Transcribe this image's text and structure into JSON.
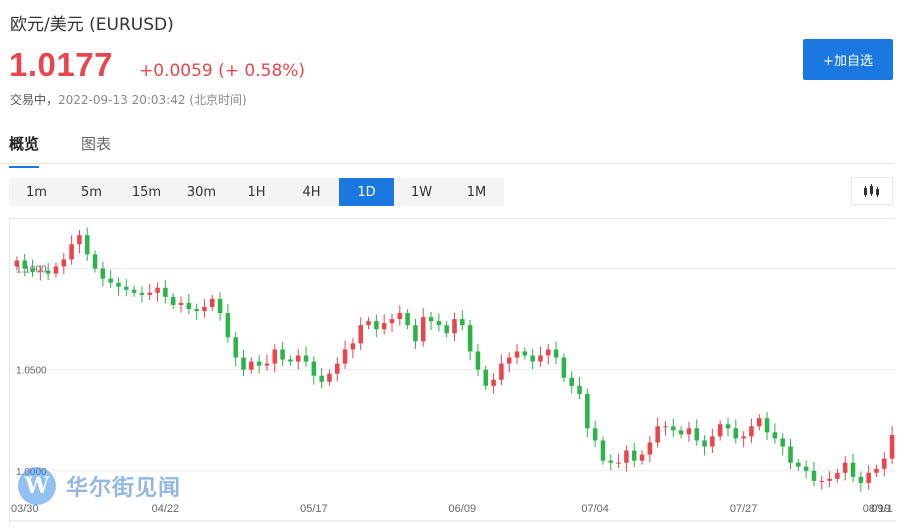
{
  "header": {
    "title": "欧元/美元  (EURUSD)",
    "price": "1.0177",
    "change": "+0.0059 (+ 0.58%)",
    "status_label": "交易中，",
    "timestamp": "2022-09-13 20:03:42",
    "timezone": "(北京时间)",
    "add_button_label": "+加自选"
  },
  "tabs": [
    {
      "label": "概览",
      "active": true
    },
    {
      "label": "图表",
      "active": false
    }
  ],
  "periods": [
    "1m",
    "5m",
    "15m",
    "30m",
    "1H",
    "4H",
    "1D",
    "1W",
    "1M"
  ],
  "active_period": "1D",
  "chart_type_icon": "candlestick-icon",
  "watermark": {
    "text": "华尔街见闻",
    "logo_letter": "W"
  },
  "colors": {
    "up": "#e8454d",
    "down": "#2bb44a",
    "accent": "#1a78e0"
  },
  "chart_data": {
    "type": "candlestick",
    "x_ticks": [
      "03/30",
      "04/22",
      "05/17",
      "06/09",
      "07/04",
      "07/27",
      "08/19",
      "09/1"
    ],
    "y_ticks": [
      "1.1000",
      "1.0500",
      "1.0000"
    ],
    "y_tick_values": [
      1.1,
      1.05,
      1.0
    ],
    "ylim": [
      0.99,
      1.1245
    ],
    "grid": true,
    "closes": [
      1.104,
      1.1,
      1.0985,
      1.099,
      1.0975,
      1.101,
      1.1045,
      1.112,
      1.1165,
      1.107,
      1.1,
      1.095,
      1.093,
      1.091,
      1.0895,
      1.088,
      1.087,
      1.088,
      1.0905,
      1.086,
      1.082,
      1.083,
      1.08,
      1.079,
      1.081,
      1.085,
      1.078,
      1.066,
      1.056,
      1.05,
      1.054,
      1.052,
      1.053,
      1.06,
      1.055,
      1.054,
      1.057,
      1.054,
      1.047,
      1.044,
      1.048,
      1.053,
      1.06,
      1.063,
      1.072,
      1.074,
      1.07,
      1.073,
      1.075,
      1.078,
      1.072,
      1.064,
      1.076,
      1.074,
      1.072,
      1.068,
      1.075,
      1.072,
      1.059,
      1.05,
      1.042,
      1.045,
      1.053,
      1.056,
      1.059,
      1.057,
      1.054,
      1.057,
      1.06,
      1.056,
      1.046,
      1.042,
      1.038,
      1.021,
      1.015,
      1.005,
      1.004,
      1.004,
      1.01,
      1.005,
      1.008,
      1.014,
      1.022,
      1.022,
      1.02,
      1.018,
      1.021,
      1.015,
      1.012,
      1.017,
      1.023,
      1.021,
      1.016,
      1.017,
      1.022,
      1.026,
      1.019,
      1.016,
      1.012,
      1.004,
      1.002,
      1.0,
      0.995,
      0.995,
      0.996,
      0.999,
      1.004,
      0.997,
      0.994,
      0.999,
      1.001,
      1.006,
      1.0177
    ]
  }
}
